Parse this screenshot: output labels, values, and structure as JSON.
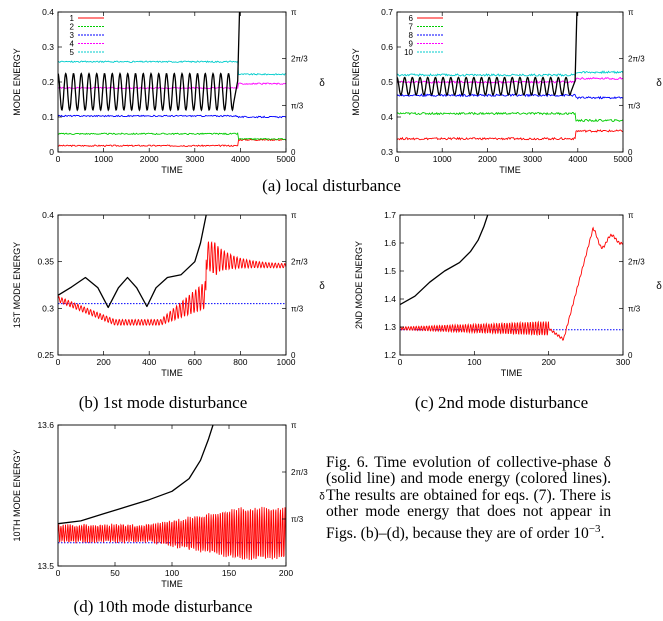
{
  "figure_caption": {
    "label": "Fig. 6.",
    "text": "Time evolution of collective-phase δ (solid line) and mode energy (colored lines). The results are obtained for eqs. (7). There is other mode energy that does not appear in Figs. (b)–(d), because they are of order 10",
    "exponent": "−3",
    "end": "."
  },
  "colors": {
    "phase": "#000000",
    "mode1": "#ff0000",
    "mode2": "#00cc00",
    "mode3": "#0000ff",
    "mode4": "#ff00ff",
    "mode5": "#00cccc"
  },
  "chart_data": [
    {
      "id": "a-left",
      "caption": "(a) local disturbance",
      "type": "line",
      "xlabel": "TIME",
      "ylabel": "MODE ENERGY",
      "y2label": "δ",
      "xlim": [
        0,
        5000
      ],
      "ylim": [
        0,
        0.4
      ],
      "xticks": [
        "0",
        "1000",
        "2000",
        "3000",
        "4000",
        "5000"
      ],
      "yticks": [
        "0",
        "0.1",
        "0.2",
        "0.3",
        "0.4"
      ],
      "y2ticks": [
        "0",
        "π/3",
        "2π/3",
        "π"
      ],
      "legend": [
        "1",
        "2",
        "3",
        "4",
        "5"
      ],
      "series": [
        {
          "name": "1",
          "color": "#ff0000",
          "before": 0.018,
          "after": 0.035,
          "change": 3950,
          "noise": 0.002
        },
        {
          "name": "2",
          "color": "#00cc00",
          "before": 0.052,
          "after": 0.037,
          "change": 3950,
          "noise": 0.002
        },
        {
          "name": "3",
          "color": "#0000ff",
          "before": 0.103,
          "after": 0.1,
          "change": 3950,
          "noise": 0.002
        },
        {
          "name": "4",
          "color": "#ff00ff",
          "before": 0.183,
          "after": 0.195,
          "change": 3950,
          "noise": 0.002
        },
        {
          "name": "5",
          "color": "#00cccc",
          "before": 0.258,
          "after": 0.222,
          "change": 3950,
          "noise": 0.002
        }
      ],
      "phase": {
        "center": 0.172,
        "amp": 0.052,
        "period": 170,
        "end": 3850,
        "rise_end": 3980,
        "top": 0.4
      }
    },
    {
      "id": "a-right",
      "caption": "",
      "type": "line",
      "xlabel": "TIME",
      "ylabel": "MODE ENERGY",
      "y2label": "δ",
      "xlim": [
        0,
        5000
      ],
      "ylim": [
        0.3,
        0.7
      ],
      "xticks": [
        "0",
        "1000",
        "2000",
        "3000",
        "4000",
        "5000"
      ],
      "yticks": [
        "0.3",
        "0.4",
        "0.5",
        "0.6",
        "0.7"
      ],
      "y2ticks": [
        "0",
        "π/3",
        "2π/3",
        "π"
      ],
      "legend": [
        "6",
        "7",
        "8",
        "9",
        "10"
      ],
      "series": [
        {
          "name": "6",
          "color": "#ff0000",
          "before": 0.338,
          "after": 0.36,
          "change": 3950,
          "noise": 0.003
        },
        {
          "name": "7",
          "color": "#00cc00",
          "before": 0.41,
          "after": 0.39,
          "change": 3950,
          "noise": 0.003
        },
        {
          "name": "8",
          "color": "#0000ff",
          "before": 0.462,
          "after": 0.455,
          "change": 3950,
          "noise": 0.003
        },
        {
          "name": "9",
          "color": "#ff00ff",
          "before": 0.5,
          "after": 0.51,
          "change": 3950,
          "noise": 0.003
        },
        {
          "name": "10",
          "color": "#00cccc",
          "before": 0.52,
          "after": 0.528,
          "change": 3950,
          "noise": 0.003
        }
      ],
      "phase": {
        "center": 0.488,
        "amp": 0.025,
        "period": 170,
        "end": 3850,
        "rise_end": 3980,
        "top": 0.7
      }
    },
    {
      "id": "b",
      "caption": "(b) 1st mode disturbance",
      "type": "line",
      "xlabel": "TIME",
      "ylabel": "1ST MODE ENERGY",
      "y2label": "δ",
      "xlim": [
        0,
        1000
      ],
      "ylim": [
        0.25,
        0.4
      ],
      "xticks": [
        "0",
        "200",
        "400",
        "600",
        "800",
        "1000"
      ],
      "yticks": [
        "0.25",
        "0.3",
        "0.35",
        "0.4"
      ],
      "y2ticks": [
        "0",
        "π/3",
        "2π/3",
        "π"
      ],
      "phase_points": [
        [
          0,
          0.314
        ],
        [
          60,
          0.323
        ],
        [
          120,
          0.333
        ],
        [
          175,
          0.322
        ],
        [
          220,
          0.301
        ],
        [
          265,
          0.322
        ],
        [
          305,
          0.333
        ],
        [
          345,
          0.322
        ],
        [
          390,
          0.302
        ],
        [
          430,
          0.322
        ],
        [
          480,
          0.333
        ],
        [
          540,
          0.336
        ],
        [
          600,
          0.35
        ],
        [
          625,
          0.37
        ],
        [
          650,
          0.4
        ]
      ],
      "flat": {
        "value": 0.305,
        "color": "#0000ff"
      },
      "energy": {
        "color": "#ff0000"
      }
    },
    {
      "id": "c",
      "caption": "(c) 2nd mode disturbance",
      "type": "line",
      "xlabel": "TIME",
      "ylabel": "2ND MODE ENERGY",
      "y2label": "δ",
      "xlim": [
        0,
        300
      ],
      "ylim": [
        1.2,
        1.7
      ],
      "xticks": [
        "0",
        "100",
        "200",
        "300"
      ],
      "yticks": [
        "1.2",
        "1.3",
        "1.4",
        "1.5",
        "1.6",
        "1.7"
      ],
      "y2ticks": [
        "0",
        "π/3",
        "2π/3",
        "π"
      ],
      "phase_points": [
        [
          0,
          1.38
        ],
        [
          20,
          1.41
        ],
        [
          40,
          1.46
        ],
        [
          60,
          1.5
        ],
        [
          80,
          1.53
        ],
        [
          95,
          1.57
        ],
        [
          105,
          1.61
        ],
        [
          113,
          1.66
        ],
        [
          118,
          1.7
        ]
      ],
      "flat": {
        "value": 1.29,
        "color": "#0000ff"
      },
      "energy": {
        "color": "#ff0000"
      }
    },
    {
      "id": "d",
      "caption": "(d) 10th mode disturbance",
      "type": "line",
      "xlabel": "TIME",
      "ylabel": "10TH MODE ENERGY",
      "y2label": "δ",
      "xlim": [
        0,
        200
      ],
      "ylim": [
        13.5,
        13.6
      ],
      "xticks": [
        "0",
        "50",
        "100",
        "150",
        "200"
      ],
      "yticks": [
        "13.5",
        "13.6"
      ],
      "y2ticks": [
        "π/3",
        "2π/3",
        "π"
      ],
      "phase_points": [
        [
          0,
          13.53
        ],
        [
          20,
          13.532
        ],
        [
          40,
          13.537
        ],
        [
          60,
          13.542
        ],
        [
          80,
          13.547
        ],
        [
          100,
          13.553
        ],
        [
          115,
          13.562
        ],
        [
          125,
          13.575
        ],
        [
          132,
          13.59
        ],
        [
          136,
          13.6
        ]
      ],
      "flat": {
        "value": 13.5165,
        "color": "#0000ff"
      },
      "energy": {
        "color": "#ff0000"
      }
    }
  ]
}
